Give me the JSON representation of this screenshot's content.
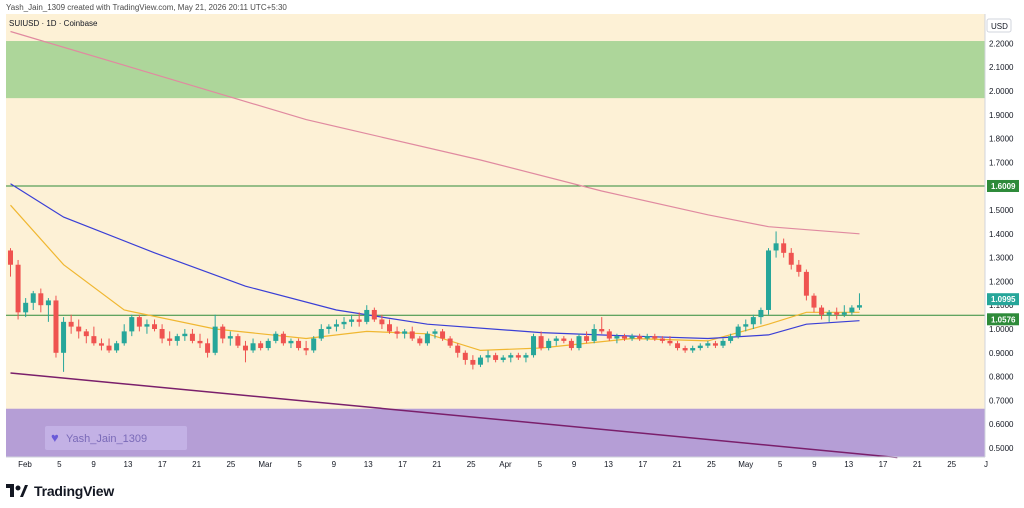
{
  "header": {
    "author_note": "Yash_Jain_1309 created with TradingView.com, May 21, 2026 20:11 UTC+5:30",
    "symbol_line": "SUIUSD · 1D · Coinbase",
    "currency": "USD"
  },
  "watermark": {
    "label": "Yash_Jain_1309",
    "icon": "heart-icon"
  },
  "brand": {
    "name": "TradingView",
    "icon": "tradingview-logo-icon"
  },
  "colors": {
    "background": "#fdf1d6",
    "up": "#26a69a",
    "down": "#ef5350",
    "resistance_zone": "#9fd18f",
    "support_zone": "#b199d6",
    "ma_fast": "#f0b731",
    "ma_slow": "#3a3fd6",
    "ma_long": "#e08aa0",
    "trend_line": "#7a1f6b",
    "level_line": "#2e8b3a"
  },
  "chart_data": {
    "type": "candlestick",
    "ylim": [
      0.46,
      2.29
    ],
    "y_ticks": [
      "0.5000",
      "0.6000",
      "0.7000",
      "0.8000",
      "0.9000",
      "1.0000",
      "1.1000",
      "1.2000",
      "1.3000",
      "1.4000",
      "1.5000",
      "1.6000",
      "1.7000",
      "1.8000",
      "1.9000",
      "2.0000",
      "2.1000",
      "2.2000"
    ],
    "x_ticks": [
      "Feb",
      "5",
      "9",
      "13",
      "17",
      "21",
      "25",
      "Mar",
      "5",
      "9",
      "13",
      "17",
      "21",
      "25",
      "Apr",
      "5",
      "9",
      "13",
      "17",
      "21",
      "25",
      "May",
      "5",
      "9",
      "13",
      "17",
      "21",
      "25",
      "J"
    ],
    "price_labels": [
      {
        "value": "1.6009",
        "kind": "level"
      },
      {
        "value": "1.0995",
        "kind": "last"
      },
      {
        "value": "1.0576",
        "kind": "average"
      }
    ],
    "zones": [
      {
        "name": "resistance",
        "from": 1.97,
        "to": 2.21
      },
      {
        "name": "support",
        "from": 0.46,
        "to": 0.665
      }
    ],
    "horizontal_levels": [
      1.6009,
      1.0576
    ],
    "trend_line": {
      "from": [
        "Jan 29",
        0.815
      ],
      "to": [
        "May 26",
        0.46
      ]
    },
    "candles": [
      [
        "Jan 29",
        1.33,
        1.34,
        1.22,
        1.27
      ],
      [
        "Jan 30",
        1.27,
        1.29,
        1.04,
        1.07
      ],
      [
        "Jan 31",
        1.07,
        1.13,
        1.05,
        1.11
      ],
      [
        "Feb 1",
        1.11,
        1.16,
        1.08,
        1.15
      ],
      [
        "Feb 2",
        1.15,
        1.17,
        1.07,
        1.1
      ],
      [
        "Feb 3",
        1.1,
        1.13,
        1.03,
        1.12
      ],
      [
        "Feb 4",
        1.12,
        1.14,
        0.88,
        0.9
      ],
      [
        "Feb 5",
        0.9,
        1.05,
        0.82,
        1.03
      ],
      [
        "Feb 6",
        1.03,
        1.06,
        0.98,
        1.01
      ],
      [
        "Feb 7",
        1.01,
        1.04,
        0.96,
        0.99
      ],
      [
        "Feb 8",
        0.99,
        1.0,
        0.94,
        0.97
      ],
      [
        "Feb 9",
        0.97,
        1.01,
        0.93,
        0.94
      ],
      [
        "Feb 10",
        0.94,
        0.96,
        0.91,
        0.93
      ],
      [
        "Feb 11",
        0.93,
        0.96,
        0.9,
        0.91
      ],
      [
        "Feb 12",
        0.91,
        0.95,
        0.9,
        0.94
      ],
      [
        "Feb 13",
        0.94,
        1.02,
        0.93,
        0.99
      ],
      [
        "Feb 14",
        0.99,
        1.06,
        0.97,
        1.05
      ],
      [
        "Feb 15",
        1.05,
        1.06,
        0.99,
        1.01
      ],
      [
        "Feb 16",
        1.01,
        1.04,
        0.98,
        1.02
      ],
      [
        "Feb 17",
        1.02,
        1.04,
        0.99,
        1.0
      ],
      [
        "Feb 18",
        1.0,
        1.02,
        0.94,
        0.96
      ],
      [
        "Feb 19",
        0.96,
        0.99,
        0.93,
        0.95
      ],
      [
        "Feb 20",
        0.95,
        0.98,
        0.93,
        0.97
      ],
      [
        "Feb 21",
        0.97,
        1.0,
        0.95,
        0.98
      ],
      [
        "Feb 22",
        0.98,
        1.0,
        0.94,
        0.95
      ],
      [
        "Feb 23",
        0.95,
        0.98,
        0.92,
        0.94
      ],
      [
        "Feb 24",
        0.94,
        0.96,
        0.88,
        0.9
      ],
      [
        "Feb 25",
        0.9,
        1.06,
        0.89,
        1.01
      ],
      [
        "Feb 26",
        1.01,
        1.02,
        0.94,
        0.96
      ],
      [
        "Feb 27",
        0.96,
        0.99,
        0.93,
        0.97
      ],
      [
        "Feb 28",
        0.97,
        0.98,
        0.92,
        0.93
      ],
      [
        "Mar 1",
        0.93,
        0.95,
        0.86,
        0.91
      ],
      [
        "Mar 2",
        0.91,
        0.96,
        0.9,
        0.94
      ],
      [
        "Mar 3",
        0.94,
        0.95,
        0.91,
        0.92
      ],
      [
        "Mar 4",
        0.92,
        0.96,
        0.91,
        0.95
      ],
      [
        "Mar 5",
        0.95,
        0.99,
        0.94,
        0.98
      ],
      [
        "Mar 6",
        0.98,
        0.99,
        0.93,
        0.94
      ],
      [
        "Mar 7",
        0.94,
        0.96,
        0.92,
        0.95
      ],
      [
        "Mar 8",
        0.95,
        0.96,
        0.91,
        0.92
      ],
      [
        "Mar 9",
        0.92,
        0.95,
        0.89,
        0.91
      ],
      [
        "Mar 10",
        0.91,
        0.97,
        0.9,
        0.96
      ],
      [
        "Mar 11",
        0.96,
        1.02,
        0.95,
        1.0
      ],
      [
        "Mar 12",
        1.0,
        1.02,
        0.98,
        1.01
      ],
      [
        "Mar 13",
        1.01,
        1.04,
        0.99,
        1.02
      ],
      [
        "Mar 14",
        1.02,
        1.05,
        1.0,
        1.03
      ],
      [
        "Mar 15",
        1.03,
        1.06,
        1.01,
        1.04
      ],
      [
        "Mar 16",
        1.04,
        1.07,
        1.01,
        1.03
      ],
      [
        "Mar 17",
        1.03,
        1.1,
        1.02,
        1.08
      ],
      [
        "Mar 18",
        1.08,
        1.09,
        1.03,
        1.04
      ],
      [
        "Mar 19",
        1.04,
        1.06,
        1.0,
        1.02
      ],
      [
        "Mar 20",
        1.02,
        1.04,
        0.98,
        0.99
      ],
      [
        "Mar 21",
        0.99,
        1.01,
        0.96,
        0.98
      ],
      [
        "Mar 22",
        0.98,
        1.0,
        0.96,
        0.99
      ],
      [
        "Mar 23",
        0.99,
        1.01,
        0.95,
        0.96
      ],
      [
        "Mar 24",
        0.96,
        0.97,
        0.93,
        0.94
      ],
      [
        "Mar 25",
        0.94,
        0.99,
        0.93,
        0.98
      ],
      [
        "Mar 26",
        0.98,
        1.0,
        0.96,
        0.99
      ],
      [
        "Mar 27",
        0.99,
        1.0,
        0.95,
        0.96
      ],
      [
        "Mar 28",
        0.96,
        0.97,
        0.92,
        0.93
      ],
      [
        "Mar 29",
        0.93,
        0.94,
        0.88,
        0.9
      ],
      [
        "Mar 30",
        0.9,
        0.91,
        0.85,
        0.87
      ],
      [
        "Mar 31",
        0.87,
        0.89,
        0.83,
        0.85
      ],
      [
        "Apr 1",
        0.85,
        0.89,
        0.84,
        0.88
      ],
      [
        "Apr 2",
        0.88,
        0.91,
        0.86,
        0.89
      ],
      [
        "Apr 3",
        0.89,
        0.9,
        0.86,
        0.87
      ],
      [
        "Apr 4",
        0.87,
        0.89,
        0.86,
        0.88
      ],
      [
        "Apr 5",
        0.88,
        0.9,
        0.86,
        0.89
      ],
      [
        "Apr 6",
        0.89,
        0.9,
        0.87,
        0.88
      ],
      [
        "Apr 7",
        0.88,
        0.9,
        0.86,
        0.89
      ],
      [
        "Apr 8",
        0.89,
        0.98,
        0.88,
        0.97
      ],
      [
        "Apr 9",
        0.97,
        0.99,
        0.91,
        0.92
      ],
      [
        "Apr 10",
        0.92,
        0.96,
        0.91,
        0.95
      ],
      [
        "Apr 11",
        0.95,
        0.97,
        0.93,
        0.96
      ],
      [
        "Apr 12",
        0.96,
        0.97,
        0.94,
        0.95
      ],
      [
        "Apr 13",
        0.95,
        0.96,
        0.91,
        0.92
      ],
      [
        "Apr 14",
        0.92,
        0.98,
        0.91,
        0.97
      ],
      [
        "Apr 15",
        0.97,
        0.99,
        0.94,
        0.95
      ],
      [
        "Apr 16",
        0.95,
        1.02,
        0.94,
        1.0
      ],
      [
        "Apr 17",
        1.0,
        1.05,
        0.98,
        0.99
      ],
      [
        "Apr 18",
        0.99,
        1.0,
        0.95,
        0.96
      ],
      [
        "Apr 19",
        0.96,
        0.98,
        0.94,
        0.97
      ],
      [
        "Apr 20",
        0.97,
        0.98,
        0.95,
        0.96
      ],
      [
        "Apr 21",
        0.96,
        0.98,
        0.95,
        0.97
      ],
      [
        "Apr 22",
        0.97,
        0.98,
        0.95,
        0.96
      ],
      [
        "Apr 23",
        0.96,
        0.98,
        0.95,
        0.97
      ],
      [
        "Apr 24",
        0.97,
        0.98,
        0.95,
        0.96
      ],
      [
        "Apr 25",
        0.96,
        0.97,
        0.94,
        0.95
      ],
      [
        "Apr 26",
        0.95,
        0.97,
        0.93,
        0.94
      ],
      [
        "Apr 27",
        0.94,
        0.95,
        0.91,
        0.92
      ],
      [
        "Apr 28",
        0.92,
        0.93,
        0.9,
        0.91
      ],
      [
        "Apr 29",
        0.91,
        0.93,
        0.9,
        0.92
      ],
      [
        "Apr 30",
        0.92,
        0.94,
        0.91,
        0.93
      ],
      [
        "May 1",
        0.93,
        0.95,
        0.92,
        0.94
      ],
      [
        "May 2",
        0.94,
        0.95,
        0.92,
        0.93
      ],
      [
        "May 3",
        0.93,
        0.96,
        0.92,
        0.95
      ],
      [
        "May 4",
        0.95,
        0.98,
        0.94,
        0.97
      ],
      [
        "May 5",
        0.97,
        1.02,
        0.96,
        1.01
      ],
      [
        "May 6",
        1.01,
        1.04,
        0.99,
        1.02
      ],
      [
        "May 7",
        1.02,
        1.06,
        1.0,
        1.05
      ],
      [
        "May 8",
        1.05,
        1.09,
        1.02,
        1.08
      ],
      [
        "May 9",
        1.08,
        1.34,
        1.06,
        1.33
      ],
      [
        "May 10",
        1.33,
        1.41,
        1.3,
        1.36
      ],
      [
        "May 11",
        1.36,
        1.38,
        1.3,
        1.32
      ],
      [
        "May 12",
        1.32,
        1.34,
        1.25,
        1.27
      ],
      [
        "May 13",
        1.27,
        1.29,
        1.22,
        1.24
      ],
      [
        "May 14",
        1.24,
        1.25,
        1.12,
        1.14
      ],
      [
        "May 15",
        1.14,
        1.15,
        1.07,
        1.09
      ],
      [
        "May 16",
        1.09,
        1.1,
        1.04,
        1.06
      ],
      [
        "May 17",
        1.06,
        1.08,
        1.03,
        1.07
      ],
      [
        "May 18",
        1.07,
        1.09,
        1.04,
        1.06
      ],
      [
        "May 19",
        1.06,
        1.1,
        1.05,
        1.07
      ],
      [
        "May 20",
        1.07,
        1.1,
        1.06,
        1.09
      ],
      [
        "May 21",
        1.09,
        1.15,
        1.08,
        1.1
      ]
    ],
    "moving_averages": [
      {
        "name": "fast",
        "points": [
          [
            "Jan 29",
            1.52
          ],
          [
            "Feb 5",
            1.27
          ],
          [
            "Feb 13",
            1.08
          ],
          [
            "Feb 25",
            1.0
          ],
          [
            "Mar 9",
            0.96
          ],
          [
            "Mar 17",
            0.99
          ],
          [
            "Mar 25",
            0.98
          ],
          [
            "Apr 1",
            0.91
          ],
          [
            "Apr 9",
            0.92
          ],
          [
            "Apr 21",
            0.96
          ],
          [
            "May 1",
            0.95
          ],
          [
            "May 9",
            1.02
          ],
          [
            "May 14",
            1.07
          ],
          [
            "May 21",
            1.07
          ]
        ]
      },
      {
        "name": "slow",
        "points": [
          [
            "Jan 29",
            1.61
          ],
          [
            "Feb 5",
            1.47
          ],
          [
            "Feb 17",
            1.32
          ],
          [
            "Mar 1",
            1.18
          ],
          [
            "Mar 13",
            1.08
          ],
          [
            "Mar 25",
            1.02
          ],
          [
            "Apr 9",
            0.985
          ],
          [
            "Apr 21",
            0.97
          ],
          [
            "May 1",
            0.96
          ],
          [
            "May 9",
            0.975
          ],
          [
            "May 14",
            1.02
          ],
          [
            "May 21",
            1.035
          ]
        ]
      },
      {
        "name": "long",
        "points": [
          [
            "Jan 29",
            2.25
          ],
          [
            "Feb 17",
            2.07
          ],
          [
            "Mar 9",
            1.88
          ],
          [
            "Apr 1",
            1.71
          ],
          [
            "Apr 17",
            1.58
          ],
          [
            "May 1",
            1.48
          ],
          [
            "May 9",
            1.43
          ],
          [
            "May 21",
            1.4
          ]
        ]
      }
    ]
  }
}
